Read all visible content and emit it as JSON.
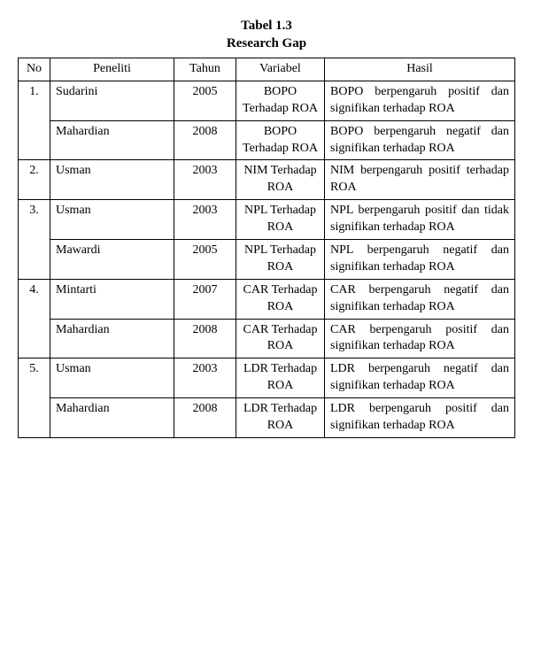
{
  "title": {
    "line1": "Tabel 1.3",
    "line2": "Research Gap"
  },
  "headers": {
    "no": "No",
    "peneliti": "Peneliti",
    "tahun": "Tahun",
    "variabel": "Variabel",
    "hasil": "Hasil"
  },
  "rows": [
    {
      "no": "1.",
      "peneliti": "Sudarini",
      "tahun": "2005",
      "variabel": "BOPO Terhadap ROA",
      "hasil": "BOPO berpengaruh positif dan signifikan terhadap ROA"
    },
    {
      "no": "",
      "peneliti": "Mahardian",
      "tahun": "2008",
      "variabel": "BOPO Terhadap ROA",
      "hasil": "BOPO berpengaruh negatif dan signifikan terhadap ROA"
    },
    {
      "no": "2.",
      "peneliti": "Usman",
      "tahun": "2003",
      "variabel": "NIM Terhadap ROA",
      "hasil": "NIM berpengaruh positif terhadap ROA"
    },
    {
      "no": "3.",
      "peneliti": "Usman",
      "tahun": "2003",
      "variabel": "NPL Terhadap ROA",
      "hasil": "NPL berpengaruh positif dan tidak signifikan terhadap ROA"
    },
    {
      "no": "",
      "peneliti": "Mawardi",
      "tahun": "2005",
      "variabel": "NPL Terhadap ROA",
      "hasil": "NPL berpengaruh negatif dan signifikan terhadap ROA"
    },
    {
      "no": "4.",
      "peneliti": "Mintarti",
      "tahun": "2007",
      "variabel": "CAR Terhadap ROA",
      "hasil": "CAR berpengaruh negatif dan signifikan terhadap ROA"
    },
    {
      "no": "",
      "peneliti": "Mahardian",
      "tahun": "2008",
      "variabel": "CAR Terhadap ROA",
      "hasil": "CAR berpengaruh positif dan signifikan terhadap ROA"
    },
    {
      "no": "5.",
      "peneliti": "Usman",
      "tahun": "2003",
      "variabel": "LDR Terhadap ROA",
      "hasil": "LDR berpengaruh negatif dan signifikan terhadap ROA"
    },
    {
      "no": "",
      "peneliti": "Mahardian",
      "tahun": "2008",
      "variabel": "LDR Terhadap ROA",
      "hasil": "LDR berpengaruh positif dan signifikan terhadap ROA"
    }
  ],
  "groups": [
    {
      "start": 0,
      "span": 2
    },
    {
      "start": 2,
      "span": 1
    },
    {
      "start": 3,
      "span": 2
    },
    {
      "start": 5,
      "span": 2
    },
    {
      "start": 7,
      "span": 2
    }
  ]
}
